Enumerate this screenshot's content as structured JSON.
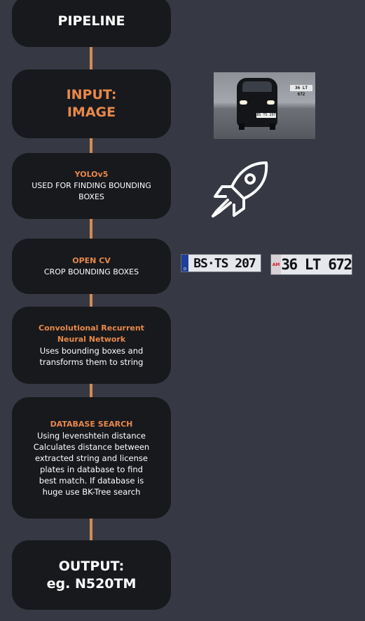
{
  "pipeline": {
    "title": "PIPELINE",
    "steps": [
      {
        "title": "INPUT:",
        "subtitle": "IMAGE"
      },
      {
        "title": "YOLOv5",
        "body": "USED FOR FINDING BOUNDING BOXES"
      },
      {
        "title": "OPEN CV",
        "body": "CROP BOUNDING BOXES"
      },
      {
        "title": "Convolutional Recurrent Neural Network",
        "body": "Uses bounding boxes and transforms them to string"
      },
      {
        "title": "DATABASE SEARCH",
        "body": "Using levenshtein distance Calculates distance between extracted string and license plates in database to find best match. If database is huge use BK-Tree search"
      },
      {
        "title": "OUTPUT:",
        "subtitle": "eg. N520TM"
      }
    ]
  },
  "illustrations": {
    "car_image": {
      "background_plate": "36 LT 672",
      "front_plate": "BS TS 207"
    },
    "rocket": "rocket-icon",
    "plates": [
      {
        "text": "BS·TS 207",
        "band": "D"
      },
      {
        "text": "36 LT 672",
        "band": "AM"
      }
    ]
  },
  "colors": {
    "background": "#363944",
    "box": "#18191d",
    "accent": "#e8894a",
    "connector": "#d68a53",
    "text": "#ffffff"
  }
}
